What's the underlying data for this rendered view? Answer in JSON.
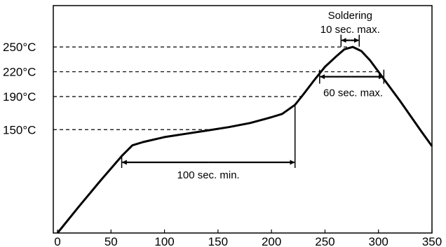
{
  "chart_data": {
    "type": "line",
    "title": "",
    "xlabel": "",
    "ylabel": "",
    "xlim": [
      0,
      350
    ],
    "ylim": [
      25,
      300
    ],
    "grid": false,
    "x_ticks": [
      0,
      50,
      100,
      150,
      200,
      250,
      300,
      350
    ],
    "x_tick_labels": [
      "0",
      "50",
      "100",
      "150",
      "200",
      "250",
      "300",
      "350"
    ],
    "y_ticks": [
      250,
      220,
      190,
      150
    ],
    "y_tick_labels": [
      "250°C",
      "220°C",
      "190°C",
      "150°C"
    ],
    "series": [
      {
        "x": [
          0,
          20,
          40,
          60,
          70,
          80,
          100,
          120,
          140,
          160,
          180,
          200,
          210,
          222,
          230,
          240,
          250,
          260,
          268,
          276,
          284,
          292,
          300,
          320,
          340,
          350
        ],
        "y": [
          25,
          57,
          88,
          118,
          131,
          135,
          141,
          145,
          149,
          153,
          158,
          165,
          169,
          180,
          193,
          210,
          226,
          238,
          247,
          250,
          245,
          234,
          220,
          185,
          148,
          130
        ]
      }
    ],
    "annotations": {
      "preheat": {
        "x_start": 60,
        "x_end": 222,
        "label": "100 sec. min."
      },
      "reflow": {
        "x_start": 245,
        "x_end": 305,
        "y": 214,
        "label": "60 sec. max."
      },
      "soldering": {
        "x_start": 265,
        "x_end": 282,
        "y": 258,
        "label_line1": "Soldering",
        "label_line2": "10 sec. max."
      }
    }
  }
}
